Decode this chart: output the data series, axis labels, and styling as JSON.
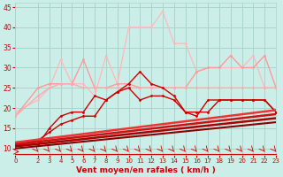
{
  "background_color": "#cceee8",
  "grid_color": "#aad4ce",
  "xlabel": "Vent moyen/en rafales ( km/h )",
  "xlabel_color": "#cc0000",
  "tick_color": "#cc0000",
  "xlim": [
    0,
    23
  ],
  "ylim": [
    8.5,
    46
  ],
  "yticks": [
    10,
    15,
    20,
    25,
    30,
    35,
    40,
    45
  ],
  "xticks": [
    0,
    2,
    3,
    4,
    5,
    6,
    7,
    8,
    9,
    10,
    11,
    12,
    13,
    14,
    15,
    16,
    17,
    18,
    19,
    20,
    21,
    22,
    23
  ],
  "lines": [
    {
      "name": "light_pink_upper",
      "x": [
        0,
        2,
        3,
        4,
        5,
        6,
        7,
        8,
        9,
        10,
        11,
        12,
        13,
        14,
        15,
        16,
        17,
        18,
        19,
        20,
        21,
        22,
        23
      ],
      "y": [
        19,
        22,
        25,
        32,
        26,
        26,
        23,
        33,
        26,
        40,
        40,
        40,
        44,
        36,
        36,
        29,
        30,
        30,
        30,
        30,
        33,
        25,
        25
      ],
      "color": "#ffb8b8",
      "lw": 0.9,
      "marker": "o",
      "ms": 2.0,
      "zorder": 2
    },
    {
      "name": "light_pink_mid",
      "x": [
        0,
        2,
        3,
        4,
        5,
        6,
        7,
        8,
        9,
        10,
        11,
        12,
        13,
        14,
        15,
        16,
        17,
        18,
        19,
        20,
        21,
        22,
        23
      ],
      "y": [
        18,
        25,
        26,
        26,
        26,
        32,
        25,
        25,
        26,
        26,
        25,
        25,
        25,
        25,
        25,
        29,
        30,
        30,
        33,
        30,
        30,
        33,
        25
      ],
      "color": "#ff9999",
      "lw": 1.0,
      "marker": "o",
      "ms": 2.0,
      "zorder": 3
    },
    {
      "name": "light_pink_low",
      "x": [
        0,
        2,
        3,
        4,
        5,
        6,
        7,
        8,
        9,
        10,
        11,
        12,
        13,
        14,
        15,
        16,
        17,
        18,
        19,
        20,
        21,
        22,
        23
      ],
      "y": [
        18,
        23,
        25,
        26,
        26,
        25,
        25,
        25,
        25,
        25,
        25,
        25,
        25,
        25,
        25,
        25,
        25,
        25,
        25,
        25,
        25,
        25,
        25
      ],
      "color": "#ffaaaa",
      "lw": 1.0,
      "marker": "o",
      "ms": 2.0,
      "zorder": 3
    },
    {
      "name": "dark_red_markers2",
      "x": [
        0,
        2,
        3,
        4,
        5,
        6,
        7,
        8,
        9,
        10,
        11,
        12,
        13,
        14,
        15,
        16,
        17,
        18,
        19,
        20,
        21,
        22,
        23
      ],
      "y": [
        11,
        12,
        14,
        16,
        17,
        18,
        18,
        22,
        24,
        26,
        29,
        26,
        25,
        23,
        19,
        19,
        19,
        22,
        22,
        22,
        22,
        22,
        19
      ],
      "color": "#cc0000",
      "lw": 1.0,
      "marker": "o",
      "ms": 2.0,
      "zorder": 4
    },
    {
      "name": "dark_red_markers1",
      "x": [
        0,
        2,
        3,
        4,
        5,
        6,
        7,
        8,
        9,
        10,
        11,
        12,
        13,
        14,
        15,
        16,
        17,
        18,
        19,
        20,
        21,
        22,
        23
      ],
      "y": [
        11,
        11,
        15,
        18,
        19,
        19,
        23,
        22,
        24,
        25,
        22,
        23,
        23,
        22,
        19,
        18,
        22,
        22,
        22,
        22,
        22,
        22,
        19
      ],
      "color": "#cc0000",
      "lw": 1.0,
      "marker": "o",
      "ms": 2.0,
      "zorder": 4
    },
    {
      "name": "regression_upper",
      "x": [
        0,
        23
      ],
      "y": [
        11.5,
        19.5
      ],
      "color": "#ee3333",
      "lw": 1.8,
      "marker": null,
      "ms": 0,
      "zorder": 5
    },
    {
      "name": "regression_mid",
      "x": [
        0,
        23
      ],
      "y": [
        11.0,
        18.5
      ],
      "color": "#cc1111",
      "lw": 1.8,
      "marker": null,
      "ms": 0,
      "zorder": 5
    },
    {
      "name": "regression_low",
      "x": [
        0,
        23
      ],
      "y": [
        10.5,
        17.5
      ],
      "color": "#aa0000",
      "lw": 1.8,
      "marker": null,
      "ms": 0,
      "zorder": 5
    },
    {
      "name": "regression_lowest",
      "x": [
        0,
        23
      ],
      "y": [
        10.0,
        16.5
      ],
      "color": "#880000",
      "lw": 1.5,
      "marker": null,
      "ms": 0,
      "zorder": 5
    }
  ]
}
